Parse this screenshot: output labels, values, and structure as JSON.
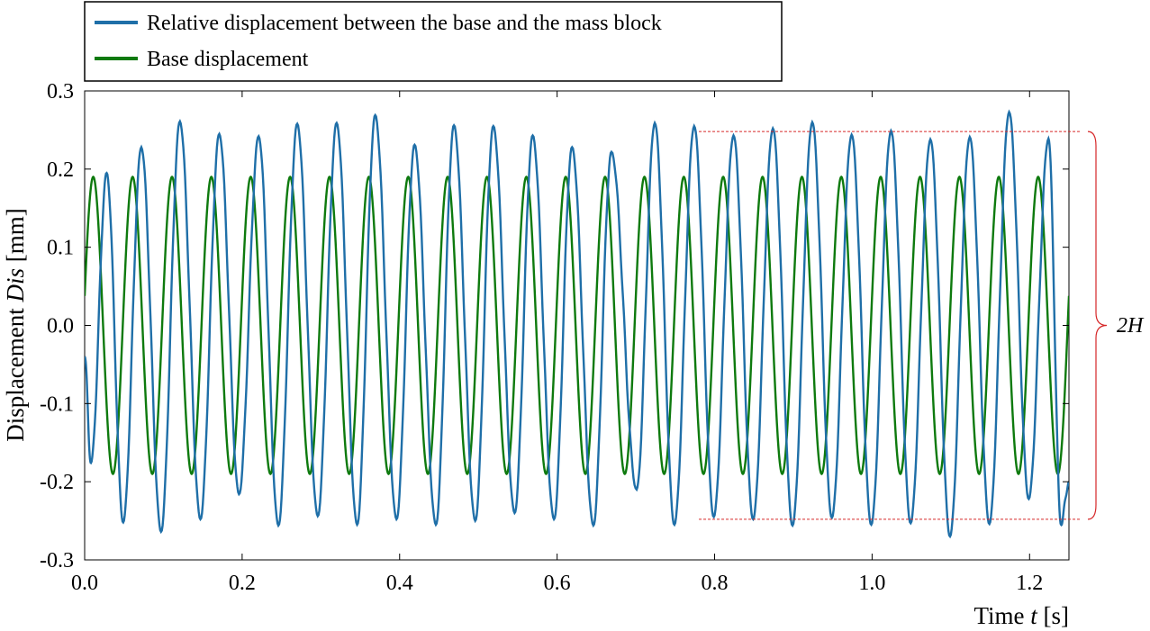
{
  "chart_data": {
    "type": "line",
    "title": "",
    "xlabel": {
      "prefix": "Time ",
      "var": "t",
      "suffix": " [s]"
    },
    "ylabel": {
      "prefix": "Displacement ",
      "var": "Dis",
      "suffix": " [mm]"
    },
    "xlim": [
      0.0,
      1.25
    ],
    "ylim": [
      -0.3,
      0.3
    ],
    "xticks": [
      0.0,
      0.2,
      0.4,
      0.6,
      0.8,
      1.0,
      1.2
    ],
    "xtick_labels": [
      "0.0",
      "0.2",
      "0.4",
      "0.6",
      "0.8",
      "1.0",
      "1.2"
    ],
    "yticks": [
      0.3,
      0.2,
      0.1,
      0.0,
      -0.1,
      -0.2,
      -0.3
    ],
    "ytick_labels": [
      "0.3",
      "0.2",
      "0.1",
      "0.0",
      "-0.1",
      "-0.2",
      "-0.3"
    ],
    "grid": false,
    "legend_position": "top-left, above plot",
    "series": [
      {
        "name": "Relative displacement between the base and the mass block",
        "color": "#1f6fa8",
        "start_value": -0.04,
        "peaks": [
          [
            0.028,
            0.195
          ],
          [
            0.072,
            0.228
          ],
          [
            0.121,
            0.261
          ],
          [
            0.171,
            0.245
          ],
          [
            0.221,
            0.242
          ],
          [
            0.27,
            0.258
          ],
          [
            0.32,
            0.259
          ],
          [
            0.369,
            0.269
          ],
          [
            0.419,
            0.231
          ],
          [
            0.469,
            0.256
          ],
          [
            0.519,
            0.255
          ],
          [
            0.569,
            0.243
          ],
          [
            0.619,
            0.228
          ],
          [
            0.669,
            0.222
          ],
          [
            0.724,
            0.259
          ],
          [
            0.774,
            0.255
          ],
          [
            0.824,
            0.243
          ],
          [
            0.874,
            0.252
          ],
          [
            0.924,
            0.26
          ],
          [
            0.974,
            0.244
          ],
          [
            1.024,
            0.249
          ],
          [
            1.074,
            0.238
          ],
          [
            1.124,
            0.241
          ],
          [
            1.174,
            0.273
          ],
          [
            1.224,
            0.239
          ]
        ],
        "troughs": [
          [
            0.008,
            -0.176
          ],
          [
            0.049,
            -0.252
          ],
          [
            0.097,
            -0.264
          ],
          [
            0.147,
            -0.248
          ],
          [
            0.196,
            -0.216
          ],
          [
            0.246,
            -0.256
          ],
          [
            0.296,
            -0.244
          ],
          [
            0.346,
            -0.255
          ],
          [
            0.396,
            -0.248
          ],
          [
            0.446,
            -0.255
          ],
          [
            0.496,
            -0.25
          ],
          [
            0.546,
            -0.24
          ],
          [
            0.596,
            -0.248
          ],
          [
            0.646,
            -0.256
          ],
          [
            0.701,
            -0.21
          ],
          [
            0.749,
            -0.255
          ],
          [
            0.799,
            -0.245
          ],
          [
            0.849,
            -0.248
          ],
          [
            0.899,
            -0.256
          ],
          [
            0.949,
            -0.246
          ],
          [
            0.999,
            -0.255
          ],
          [
            1.049,
            -0.253
          ],
          [
            1.099,
            -0.27
          ],
          [
            1.149,
            -0.254
          ],
          [
            1.199,
            -0.222
          ],
          [
            1.24,
            -0.255
          ]
        ],
        "end_value": -0.2
      },
      {
        "name": "Base displacement",
        "color": "#0e7a0e",
        "amplitude": 0.19,
        "frequency_hz": 20,
        "phase_rad": 0.2
      }
    ],
    "annotations": {
      "upper_ref_value": 0.248,
      "lower_ref_value": -0.248,
      "ref_x_start": 0.78,
      "ref_color": "#d62728",
      "label": "2H"
    }
  }
}
